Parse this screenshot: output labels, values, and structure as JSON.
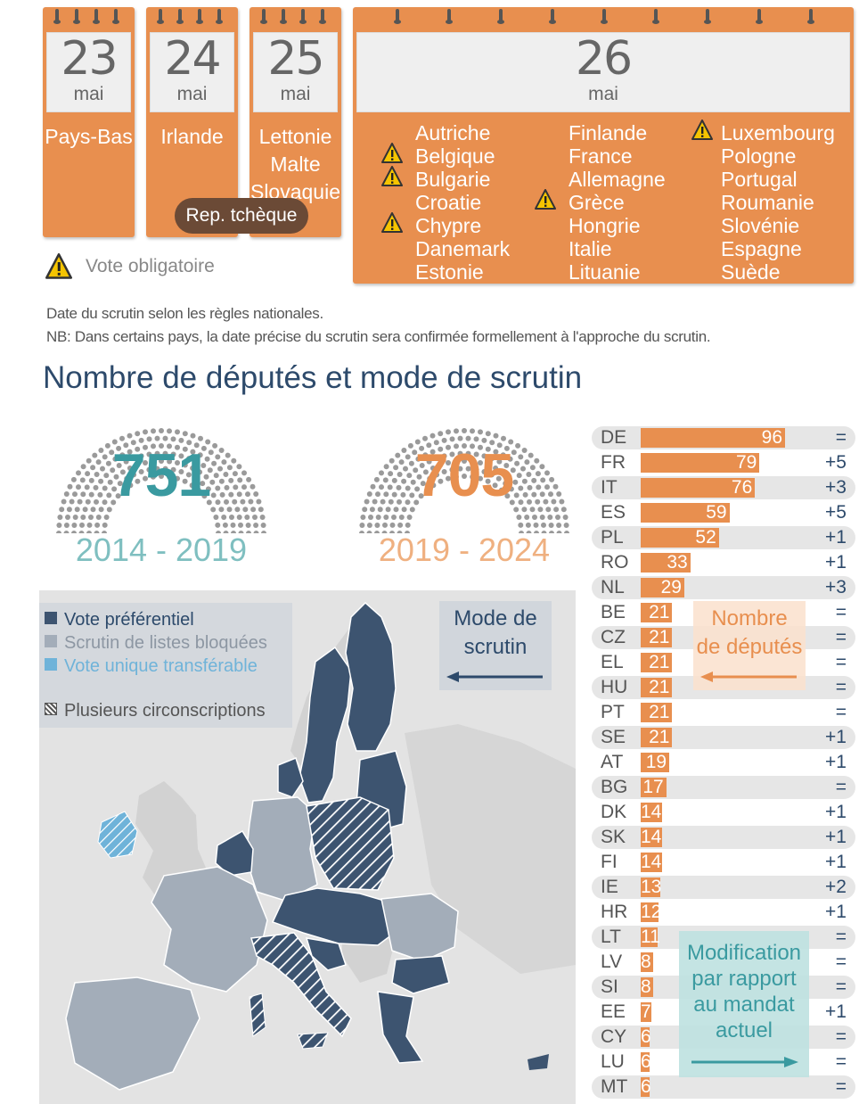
{
  "calendar": {
    "d23": {
      "day": "23",
      "month": "mai",
      "countries": [
        "Pays-Bas"
      ]
    },
    "d24": {
      "day": "24",
      "month": "mai",
      "countries": [
        "Irlande"
      ]
    },
    "d25": {
      "day": "25",
      "month": "mai",
      "countries": [
        "Lettonie",
        "Malte",
        "Slovaquie"
      ]
    },
    "rep": "Rep. tchèque",
    "d26": {
      "day": "26",
      "month": "mai",
      "col1": [
        "Autriche",
        "Belgique",
        "Bulgarie",
        "Croatie",
        "Chypre",
        "Danemark",
        "Estonie"
      ],
      "col2": [
        "Finlande",
        "France",
        "Allemagne",
        "Grèce",
        "Hongrie",
        "Italie",
        "Lituanie"
      ],
      "col3": [
        "Luxembourg",
        "Pologne",
        "Portugal",
        "Roumanie",
        "Slovénie",
        "Espagne",
        "Suède"
      ]
    },
    "mandatory_label": "Vote obligatoire",
    "mandatory_countries": [
      "Belgique",
      "Bulgarie",
      "Chypre",
      "Grèce",
      "Luxembourg"
    ]
  },
  "notes": {
    "line1": "Date du scrutin selon les règles nationales.",
    "line2": "NB: Dans certains pays, la date précise du scrutin sera confirmée formellement à l'approche du scrutin."
  },
  "section_title": "Nombre de députés et mode de scrutin",
  "parliaments": [
    {
      "seats": "751",
      "years": "2014 - 2019",
      "color": "#3a9aa0"
    },
    {
      "seats": "705",
      "years": "2019 - 2024",
      "color": "#e88f4f"
    }
  ],
  "legend": {
    "pref": "Vote préférentiel",
    "listes": "Scrutin de listes bloquées",
    "stv": "Vote unique transférable",
    "multi": "Plusieurs circonscriptions",
    "colors": {
      "pref": "#3d5470",
      "listes": "#a3adb9",
      "stv": "#6fb3d9"
    }
  },
  "boxes": {
    "mode": [
      "Mode de",
      "scrutin"
    ],
    "nombre": [
      "Nombre",
      "de députés"
    ],
    "modif": [
      "Modification",
      "par rapport",
      "au mandat",
      "actuel"
    ]
  },
  "chart_data": {
    "type": "bar",
    "title": "",
    "categories": [
      "DE",
      "FR",
      "IT",
      "ES",
      "PL",
      "RO",
      "NL",
      "BE",
      "CZ",
      "EL",
      "HU",
      "PT",
      "SE",
      "AT",
      "BG",
      "DK",
      "SK",
      "FI",
      "IE",
      "HR",
      "LT",
      "LV",
      "SI",
      "EE",
      "CY",
      "LU",
      "MT"
    ],
    "values": [
      96,
      79,
      76,
      59,
      52,
      33,
      29,
      21,
      21,
      21,
      21,
      21,
      21,
      19,
      17,
      14,
      14,
      14,
      13,
      12,
      11,
      8,
      8,
      7,
      6,
      6,
      6
    ],
    "changes": [
      "=",
      "+5",
      "+3",
      "+5",
      "+1",
      "+1",
      "+3",
      "=",
      "=",
      "=",
      "=",
      "=",
      "+1",
      "+1",
      "=",
      "+1",
      "+1",
      "+1",
      "+2",
      "+1",
      "=",
      "=",
      "=",
      "+1",
      "=",
      "=",
      "="
    ],
    "series": [
      {
        "name": "Nombre de députés",
        "values": [
          96,
          79,
          76,
          59,
          52,
          33,
          29,
          21,
          21,
          21,
          21,
          21,
          21,
          19,
          17,
          14,
          14,
          14,
          13,
          12,
          11,
          8,
          8,
          7,
          6,
          6,
          6
        ]
      }
    ]
  }
}
